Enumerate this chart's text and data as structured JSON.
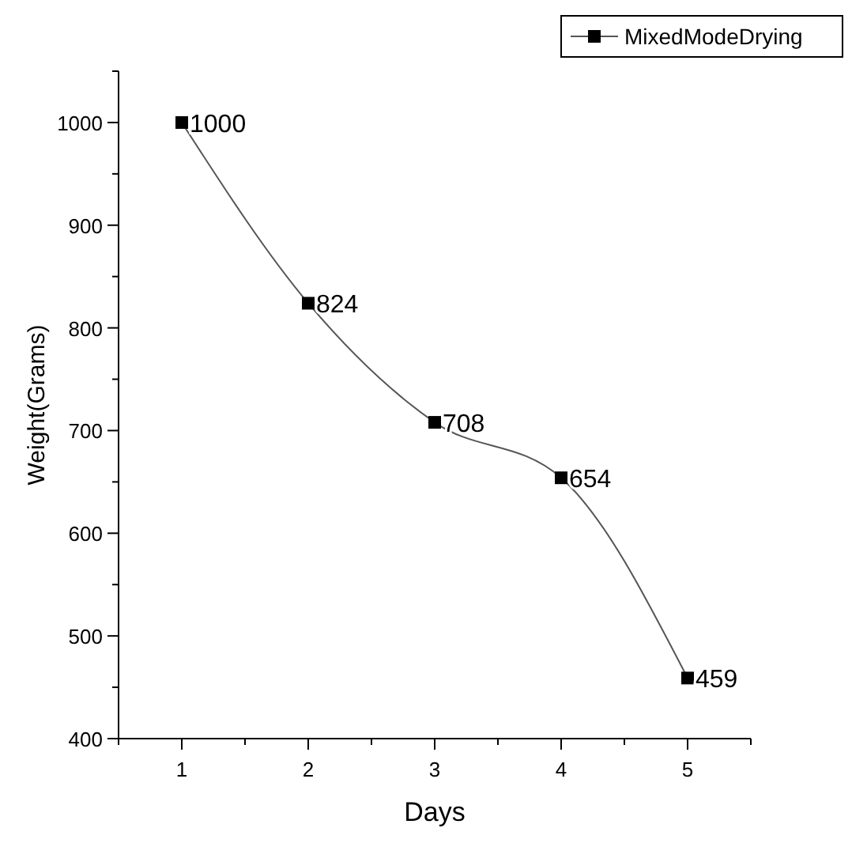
{
  "chart_data": {
    "type": "line",
    "xlabel": "Days",
    "ylabel": "Weight(Grams)",
    "x": [
      1,
      2,
      3,
      4,
      5
    ],
    "series": [
      {
        "name": "MixedModeDrying",
        "color": "#000000",
        "values": [
          1000,
          824,
          708,
          654,
          459
        ]
      }
    ],
    "xlim": [
      0.5,
      5.5
    ],
    "xticks": [
      {
        "value": 0.5,
        "label": null
      },
      1,
      {
        "value": 1.5,
        "label": null
      },
      2,
      {
        "value": 2.5,
        "label": null
      },
      3,
      {
        "value": 3.5,
        "label": null
      },
      4,
      {
        "value": 4.5,
        "label": null
      },
      5,
      {
        "value": 5.5,
        "label": null
      }
    ],
    "ylim": [
      400,
      1050
    ],
    "yticks": [
      400,
      {
        "value": 450,
        "label": null
      },
      500,
      {
        "value": 550,
        "label": null
      },
      600,
      {
        "value": 650,
        "label": null
      },
      700,
      {
        "value": 750,
        "label": null
      },
      800,
      {
        "value": 850,
        "label": null
      },
      900,
      {
        "value": 950,
        "label": null
      },
      1000,
      {
        "value": 1050,
        "label": null
      }
    ],
    "marker": "square",
    "data_labels": true,
    "legend": "top right",
    "grid": false
  }
}
